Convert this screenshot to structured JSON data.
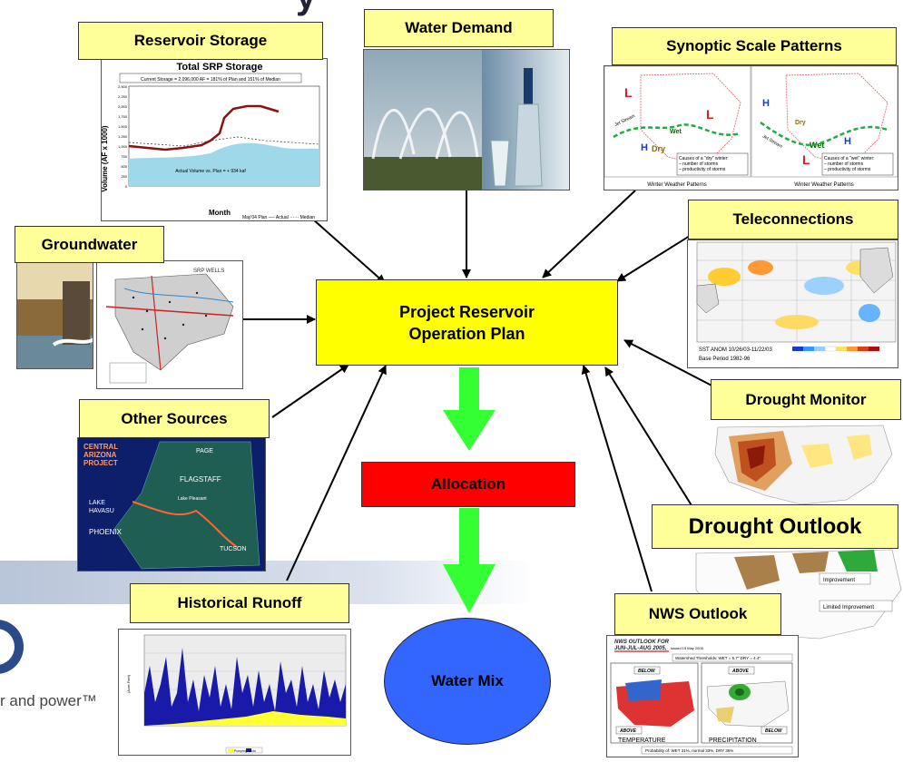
{
  "header_fragment": "y",
  "center": {
    "plan": "Project Reservoir\nOperation Plan",
    "allocation": "Allocation",
    "water_mix": "Water Mix"
  },
  "sources": {
    "reservoir_storage": "Reservoir Storage",
    "water_demand": "Water Demand",
    "synoptic": "Synoptic Scale Patterns",
    "teleconnections": "Teleconnections",
    "groundwater": "Groundwater",
    "other_sources": "Other Sources",
    "drought_monitor": "Drought Monitor",
    "drought_outlook": "Drought Outlook",
    "historical_runoff": "Historical Runoff",
    "nws_outlook": "NWS Outlook"
  },
  "storage_chart": {
    "title": "Total SRP Storage",
    "note": "Current Storage = 2,096,000 AF = 181% of Plan and 151% of Median",
    "ylabel": "Volume (AF x 1000)",
    "xlabel": "Month",
    "inner_label": "Actual Volume vs. Plan = + 934 kaf",
    "legend": "May'04 Plan ── Actual ······ Median",
    "y_ticks": [
      "2,500",
      "2,250",
      "2,000",
      "1,750",
      "1,500",
      "1,250",
      "1,000",
      "750",
      "500",
      "250",
      "0"
    ]
  },
  "synoptic_panel": {
    "caption": "Winter Weather Patterns",
    "left_note": "Causes of a \"dry\" winter:\n– number of storms\n– productivity of storms",
    "right_note": "Causes of a \"wet\" winter:\n– number of storms\n– productivity of storms",
    "jet": "Jet Stream",
    "L": "L",
    "H": "H",
    "wet": "Wet",
    "dry": "Dry"
  },
  "sst_panel": {
    "caption": "SST ANOM 10/26/03-11/22/03",
    "base": "Base Period 1982-96"
  },
  "groundwater_panel": {
    "title": "SRP WELLS"
  },
  "cap_panel": {
    "title": "CENTRAL\nARIZONA\nPROJECT",
    "page": "PAGE",
    "flagstaff": "FLAGSTAFF",
    "lake_havasu": "LAKE\nHAVASU",
    "phoenix": "PHOENIX",
    "tucson": "TUCSON",
    "lake_pleasant": "Lake Pleasant"
  },
  "outlook_panel": {
    "improvement": "Improvement",
    "limited": "Limited Improvement"
  },
  "nws_panel": {
    "header1": "NWS OUTLOOK FOR",
    "header2": "JUN-JUL-AUG 2005,",
    "issued": "issued 19 May 2005",
    "thresholds": "Watershed Thresholds: WET = 5.7\"  DRY = 4.4\"",
    "below": "BELOW",
    "above": "ABOVE",
    "temperature": "TEMPERATURE",
    "precipitation": "PRECIPITATION",
    "probability": "Probability of: WET 31%, normal 33%, DRY 36%"
  },
  "runoff_legend": "Pumping  Inflow",
  "logo_tagline": "r and power™",
  "colors": {
    "label_bg": "#ffff99",
    "plan_box": "#ffff00",
    "allocation_box": "#ff0000",
    "water_mix": "#3366ff",
    "flow_arrow": "#33ff33"
  }
}
